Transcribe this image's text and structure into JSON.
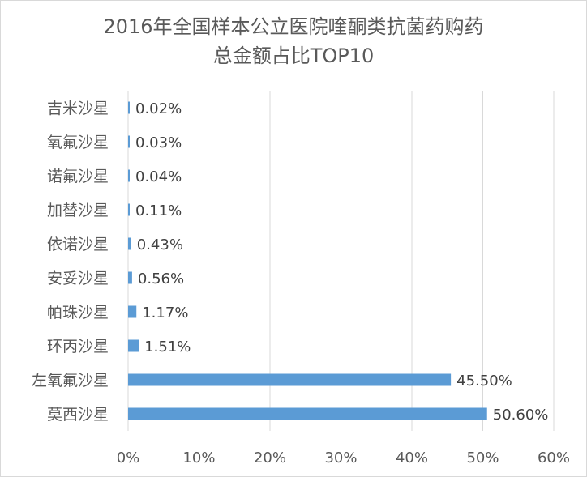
{
  "chart_data": {
    "type": "bar",
    "orientation": "horizontal",
    "title_line1": "2016年全国样本公立医院喹酮类抗菌药购药",
    "title_line2": "总金额占比TOP10",
    "categories": [
      "吉米沙星",
      "氧氟沙星",
      "诺氟沙星",
      "加替沙星",
      "依诺沙星",
      "安妥沙星",
      "帕珠沙星",
      "环丙沙星",
      "左氧氟沙星",
      "莫西沙星"
    ],
    "values": [
      0.02,
      0.03,
      0.04,
      0.11,
      0.43,
      0.56,
      1.17,
      1.51,
      45.5,
      50.6
    ],
    "value_labels": [
      "0.02%",
      "0.03%",
      "0.04%",
      "0.11%",
      "0.43%",
      "0.56%",
      "1.17%",
      "1.51%",
      "45.50%",
      "50.60%"
    ],
    "xlim": [
      0,
      60
    ],
    "x_ticks": [
      0,
      10,
      20,
      30,
      40,
      50,
      60
    ],
    "x_tick_labels": [
      "0%",
      "10%",
      "20%",
      "30%",
      "40%",
      "50%",
      "60%"
    ],
    "grid": "vertical",
    "bar_color": "#5b9bd5",
    "grid_color": "#d9d9d9"
  }
}
